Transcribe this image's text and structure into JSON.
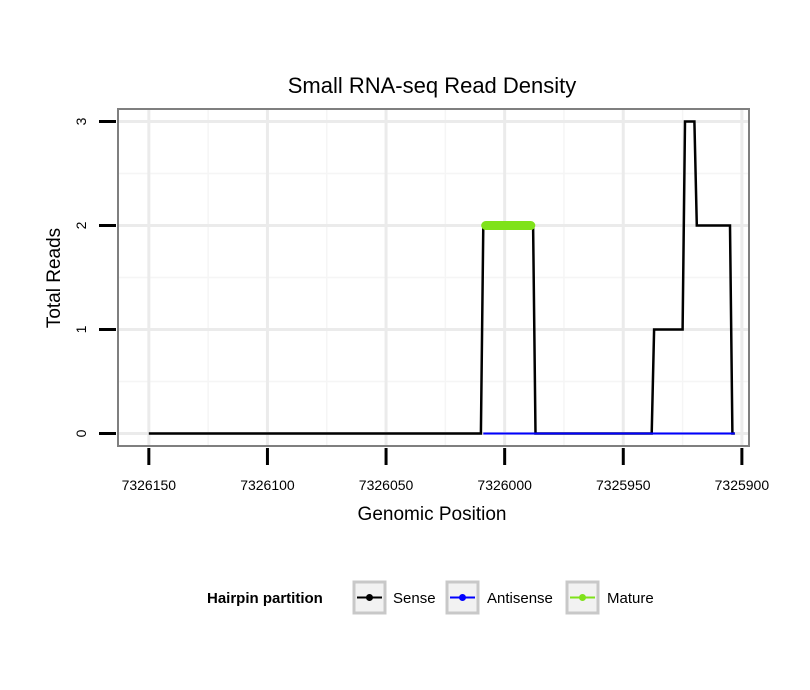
{
  "chart_data": {
    "type": "line",
    "title": "Small RNA-seq Read Density",
    "xlabel": "Genomic Position",
    "ylabel": "Total Reads",
    "xlim": [
      7326163,
      7325897
    ],
    "x_reversed": true,
    "ylim": [
      -0.12,
      3.12
    ],
    "x_ticks": [
      7326150,
      7326100,
      7326050,
      7326000,
      7325950,
      7325900
    ],
    "x_tick_labels": [
      "7326150",
      "7326100",
      "7326050",
      "7326000",
      "7325950",
      "7325900"
    ],
    "y_ticks": [
      0,
      1,
      2,
      3
    ],
    "y_tick_labels": [
      "0",
      "1",
      "2",
      "3"
    ],
    "grid": true,
    "series": [
      {
        "name": "Sense",
        "color": "#000000",
        "points": [
          [
            7326150,
            0
          ],
          [
            7326010,
            0
          ],
          [
            7326009,
            2
          ],
          [
            7325988,
            2
          ],
          [
            7325987,
            0
          ],
          [
            7325938,
            0
          ],
          [
            7325937,
            1
          ],
          [
            7325925,
            1
          ],
          [
            7325924,
            3
          ],
          [
            7325920,
            3
          ],
          [
            7325919,
            2
          ],
          [
            7325905,
            2
          ],
          [
            7325904,
            0
          ],
          [
            7325903,
            0
          ]
        ]
      },
      {
        "name": "Antisense",
        "color": "#0000ff",
        "points": [
          [
            7326009,
            0
          ],
          [
            7325988,
            0
          ],
          [
            7325937,
            0
          ],
          [
            7325903,
            0
          ]
        ]
      },
      {
        "name": "Mature",
        "color": "#7fe21a",
        "points": [
          [
            7326008,
            2
          ],
          [
            7325989,
            2
          ]
        ]
      }
    ],
    "legend": {
      "title": "Hairpin partition",
      "placement": "bottom",
      "entries": [
        "Sense",
        "Antisense",
        "Mature"
      ]
    }
  }
}
